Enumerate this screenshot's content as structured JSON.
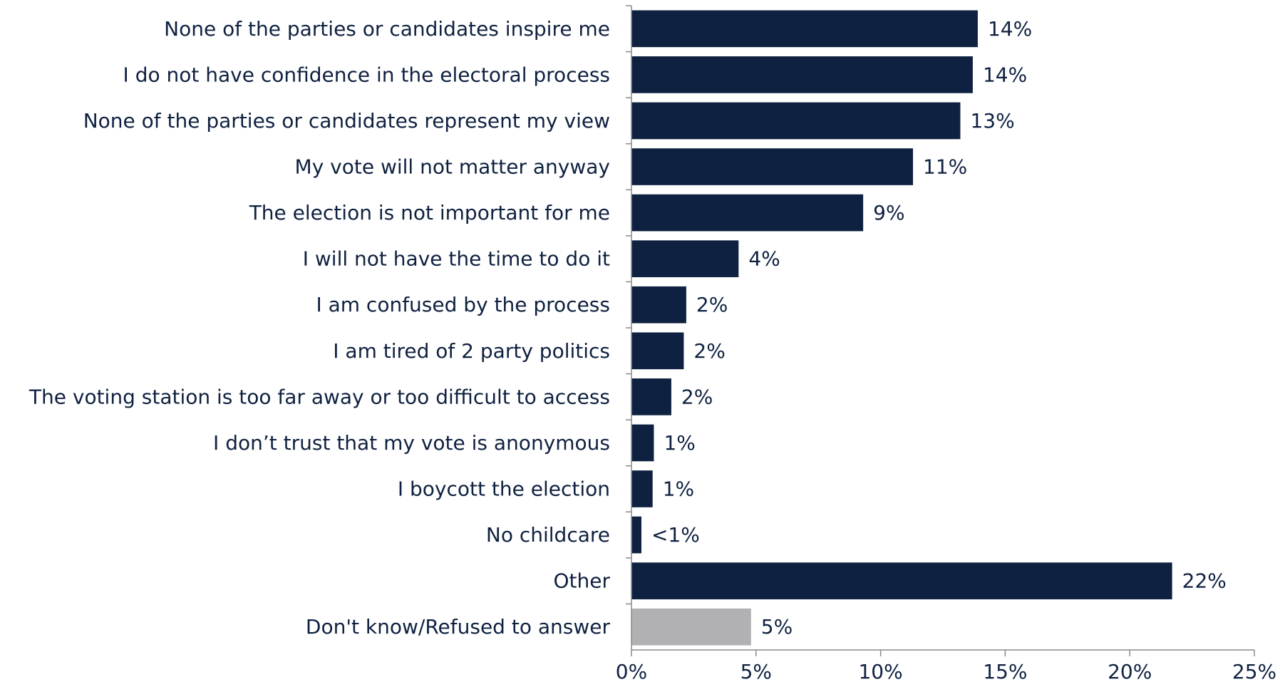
{
  "chart_data": {
    "type": "bar",
    "orientation": "horizontal",
    "categories": [
      "None of the parties or candidates inspire me",
      "I do not have confidence in the electoral process",
      "None of the parties or candidates represent my view",
      "My vote will not matter anyway",
      "The election is not important for me",
      "I will not have the time to do it",
      "I am confused by the process",
      "I am tired of 2 party politics",
      "The voting station is too far away or too difficult to access",
      "I don’t trust that my vote is anonymous",
      "I boycott the election",
      "No childcare",
      "Other",
      "Don't know/Refused to answer"
    ],
    "values": [
      13.9,
      13.7,
      13.2,
      11.3,
      9.3,
      4.3,
      2.2,
      2.1,
      1.6,
      0.9,
      0.85,
      0.4,
      21.7,
      4.8
    ],
    "value_labels": [
      "14%",
      "14%",
      "13%",
      "11%",
      "9%",
      "4%",
      "2%",
      "2%",
      "2%",
      "1%",
      "1%",
      "<1%",
      "22%",
      "5%"
    ],
    "bar_colors": [
      "#0f2140",
      "#0f2140",
      "#0f2140",
      "#0f2140",
      "#0f2140",
      "#0f2140",
      "#0f2140",
      "#0f2140",
      "#0f2140",
      "#0f2140",
      "#0f2140",
      "#0f2140",
      "#0f2140",
      "#b1b1b3"
    ],
    "xlim": [
      0,
      25
    ],
    "x_ticks": [
      0,
      5,
      10,
      15,
      20,
      25
    ],
    "x_tick_labels": [
      "0%",
      "5%",
      "10%",
      "15%",
      "20%",
      "25%"
    ],
    "grid": false,
    "legend": "none",
    "title": "",
    "xlabel": "",
    "ylabel": ""
  }
}
